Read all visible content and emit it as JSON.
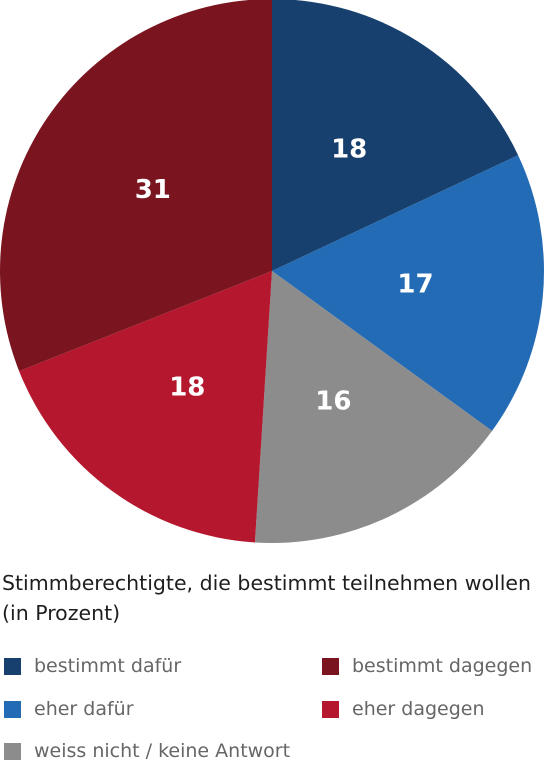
{
  "chart_data": {
    "type": "pie",
    "title": "Stimmberechtigte, die bestimmt teilnehmen wollen (in Prozent)",
    "slices": [
      {
        "label": "bestimmt dafür",
        "value": 18,
        "color": "#17406e"
      },
      {
        "label": "eher dafür",
        "value": 17,
        "color": "#236bb5"
      },
      {
        "label": "weiss nicht / keine Antwort",
        "value": 16,
        "color": "#8c8c8c"
      },
      {
        "label": "eher dagegen",
        "value": 18,
        "color": "#b5182e"
      },
      {
        "label": "bestimmt dagegen",
        "value": 31,
        "color": "#7a1520"
      }
    ]
  },
  "legend": [
    {
      "label": "bestimmt dafür",
      "color": "#17406e"
    },
    {
      "label": "bestimmt dagegen",
      "color": "#7a1520"
    },
    {
      "label": "eher dafür",
      "color": "#236bb5"
    },
    {
      "label": "eher dagegen",
      "color": "#b5182e"
    },
    {
      "label": "weiss nicht / keine Antwort",
      "color": "#8c8c8c"
    }
  ]
}
